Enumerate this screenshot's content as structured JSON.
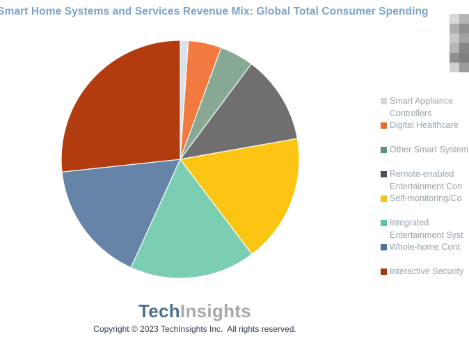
{
  "title": "Smart Home Systems and Services Revenue Mix: Global Total Consumer Spending",
  "chart_data": {
    "type": "pie",
    "title": "Smart Home Systems and Services Revenue Mix: Global Total Consumer Spending",
    "categories": [
      "Smart Appliance Controllers",
      "Digital Healthcare",
      "Other Smart System",
      "Remote-enabled Entertainment Con",
      "Self-monitoring/Co",
      "Integrated Entertainment Syst",
      "Whole-home Cont",
      "Interactive Security"
    ],
    "values": [
      1.1,
      4.5,
      4.6,
      12.0,
      17.5,
      17.1,
      16.5,
      26.7
    ],
    "values_unit": "percent (estimated from slice angles)",
    "colors": [
      "#dce2ec",
      "#f2793f",
      "#87a892",
      "#6f6f6f",
      "#fcc513",
      "#7bceb2",
      "#6584a8",
      "#b23b10"
    ],
    "start_angle_deg": 0,
    "direction": "clockwise",
    "legend_position": "right",
    "data_labels": false
  },
  "legend": {
    "items": [
      {
        "label_lines": [
          "Smart Appliance",
          "Controllers"
        ],
        "swatch": "#d6d6d6",
        "gap_after": false
      },
      {
        "label_lines": [
          "Digital Healthcare"
        ],
        "swatch": "#e06b2e",
        "gap_after": true
      },
      {
        "label_lines": [
          "Other Smart System"
        ],
        "swatch": "#5a9181",
        "gap_after": true
      },
      {
        "label_lines": [
          "Remote-enabled",
          "Entertainment Con"
        ],
        "swatch": "#4f4f4f",
        "gap_after": false
      },
      {
        "label_lines": [
          "Self-monitoring/Co"
        ],
        "swatch": "#eec11c",
        "gap_after": true
      },
      {
        "label_lines": [
          "Integrated",
          "Entertainment Syst"
        ],
        "swatch": "#5ec3a4",
        "gap_after": false
      },
      {
        "label_lines": [
          "Whole-home Cont"
        ],
        "swatch": "#4f739d",
        "gap_after": true
      },
      {
        "label_lines": [
          "Interactive Security"
        ],
        "swatch": "#a5380a",
        "gap_after": false
      }
    ]
  },
  "footer": {
    "logo_part1": "Tech",
    "logo_part2": "Insights",
    "copyright": "Copyright © 2023 TechInsights Inc.  All rights reserved."
  },
  "colors": {
    "title_text": "#7ba3c6",
    "legend_text": "#97a4b0",
    "logo_part1": "#4b7092",
    "logo_part2": "#a7a9ac",
    "copyright_text": "#2d3e4e",
    "slice_border": "#ffffff"
  },
  "censor_patch": {
    "rows": [
      [
        "#d9d9d9",
        "#b5b5b5"
      ],
      [
        "#aeaeae",
        "#909090"
      ],
      [
        "#c6c6c6",
        "#a2a2a2"
      ],
      [
        "#b5b5b5",
        "#868686"
      ],
      [
        "#8f8f8f",
        "#7f7f7f"
      ],
      [
        "#d0d0d0",
        "#9c9c9c"
      ]
    ]
  }
}
